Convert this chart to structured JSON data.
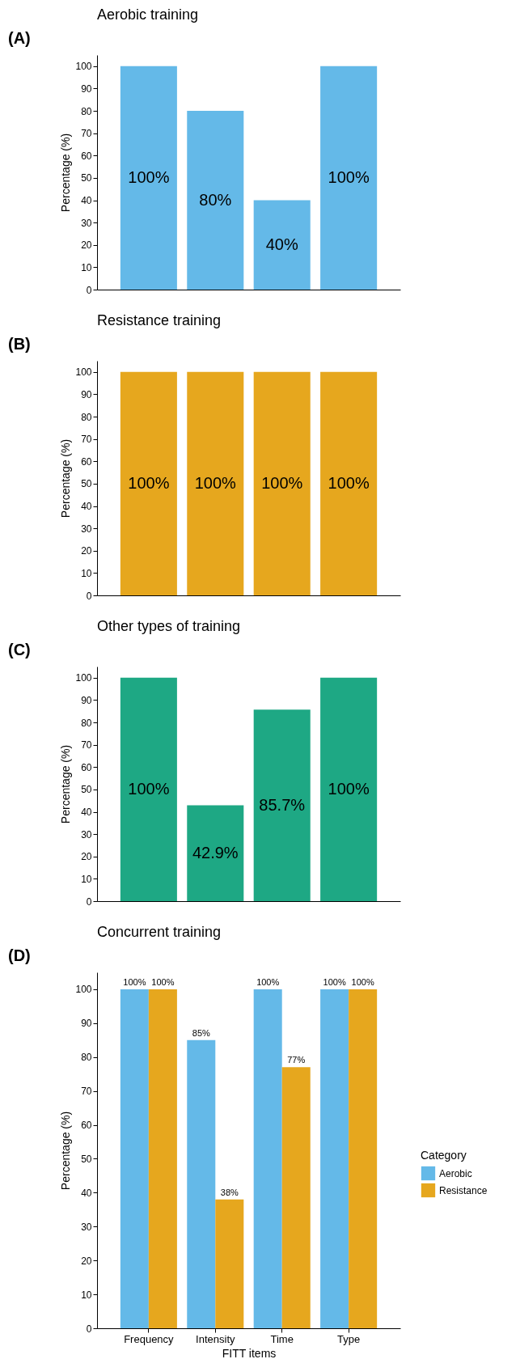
{
  "chart_data": [
    {
      "type": "bar",
      "title": "Aerobic training",
      "annotations": [
        "(A)"
      ],
      "ylabel": "Percentage (%)",
      "categories": [
        null,
        null,
        null,
        null
      ],
      "series": [
        {
          "color": "#64b9e8",
          "values": [
            100,
            80,
            40,
            100
          ],
          "value_labels": [
            "100%",
            "80%",
            "40%",
            "100%"
          ]
        }
      ],
      "ylim": [
        0,
        105
      ],
      "yticks": [
        0,
        10,
        20,
        30,
        40,
        50,
        60,
        70,
        80,
        90,
        100
      ],
      "tick_labels": "y",
      "grid": false
    },
    {
      "type": "bar",
      "title": "Resistance training",
      "annotations": [
        "(B)"
      ],
      "ylabel": "Percentage (%)",
      "categories": [
        null,
        null,
        null,
        null
      ],
      "series": [
        {
          "color": "#e6a71e",
          "values": [
            100,
            100,
            100,
            100
          ],
          "value_labels": [
            "100%",
            "100%",
            "100%",
            "100%"
          ]
        }
      ],
      "ylim": [
        0,
        105
      ],
      "yticks": [
        0,
        10,
        20,
        30,
        40,
        50,
        60,
        70,
        80,
        90,
        100
      ],
      "tick_labels": "y",
      "grid": false
    },
    {
      "type": "bar",
      "title": "Other types of training",
      "annotations": [
        "(C)"
      ],
      "ylabel": "Percentage (%)",
      "categories": [
        null,
        null,
        null,
        null
      ],
      "series": [
        {
          "color": "#1ea884",
          "values": [
            100,
            42.9,
            85.7,
            100
          ],
          "value_labels": [
            "100%",
            "42.9%",
            "85.7%",
            "100%"
          ]
        }
      ],
      "ylim": [
        0,
        105
      ],
      "yticks": [
        0,
        10,
        20,
        30,
        40,
        50,
        60,
        70,
        80,
        90,
        100
      ],
      "tick_labels": "y",
      "grid": false
    },
    {
      "type": "bar",
      "title": "Concurrent training",
      "annotations": [
        "(D)"
      ],
      "ylabel": "Percentage (%)",
      "xlabel": "FITT items",
      "legend_title": "Category",
      "legend": "right",
      "categories": [
        "Frequency",
        "Intensity",
        "Time",
        "Type"
      ],
      "series": [
        {
          "name": "Aerobic",
          "color": "#64b9e8",
          "values": [
            100,
            85,
            100,
            100
          ],
          "value_labels": [
            "100%",
            "85%",
            "100%",
            "100%"
          ]
        },
        {
          "name": "Resistance",
          "color": "#e6a71e",
          "values": [
            100,
            38,
            77,
            100
          ],
          "value_labels": [
            "100%",
            "38%",
            "77%",
            "100%"
          ]
        }
      ],
      "ylim": [
        0,
        105
      ],
      "yticks": [
        0,
        10,
        20,
        30,
        40,
        50,
        60,
        70,
        80,
        90,
        100
      ],
      "grid": false
    }
  ]
}
